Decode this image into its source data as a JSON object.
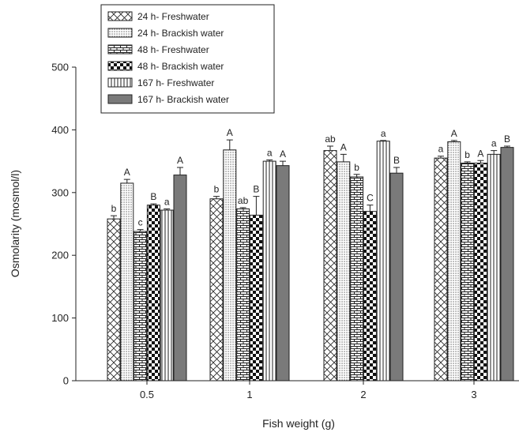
{
  "chart_data": {
    "type": "bar",
    "xlabel": "Fish weight (g)",
    "ylabel": "Osmolarity (mosmol/l)",
    "ylim": [
      0,
      500
    ],
    "yticks": [
      0,
      100,
      200,
      300,
      400,
      500
    ],
    "categories": [
      "0.5",
      "1",
      "2",
      "3"
    ],
    "legend_position": "top-left",
    "series": [
      {
        "name": "24 h- Freshwater",
        "pattern": "crosshatch",
        "values": [
          258,
          290,
          367,
          355
        ],
        "errors": [
          5,
          4,
          7,
          3
        ],
        "labels": [
          "b",
          "b",
          "ab",
          "a"
        ]
      },
      {
        "name": "24 h- Brackish water",
        "pattern": "dots",
        "values": [
          315,
          368,
          349,
          381
        ],
        "errors": [
          6,
          16,
          12,
          2
        ],
        "labels": [
          "A",
          "A",
          "A",
          "A"
        ]
      },
      {
        "name": "48 h- Freshwater",
        "pattern": "bricks",
        "values": [
          238,
          274,
          325,
          347
        ],
        "errors": [
          3,
          2,
          4,
          2
        ],
        "labels": [
          "c",
          "ab",
          "b",
          "b"
        ]
      },
      {
        "name": "48 h- Brackish water",
        "pattern": "checker",
        "values": [
          280,
          264,
          270,
          347
        ],
        "errors": [
          2,
          30,
          10,
          4
        ],
        "labels": [
          "B",
          "B",
          "C",
          "A"
        ]
      },
      {
        "name": "167 h- Freshwater",
        "pattern": "vlines",
        "values": [
          272,
          350,
          382,
          361
        ],
        "errors": [
          2,
          2,
          1,
          6
        ],
        "labels": [
          "a",
          "a",
          "a",
          "a"
        ]
      },
      {
        "name": "167 h- Brackish water",
        "pattern": "solid",
        "values": [
          328,
          343,
          331,
          372
        ],
        "errors": [
          12,
          7,
          9,
          2
        ],
        "labels": [
          "A",
          "A",
          "B",
          "B"
        ]
      }
    ]
  }
}
